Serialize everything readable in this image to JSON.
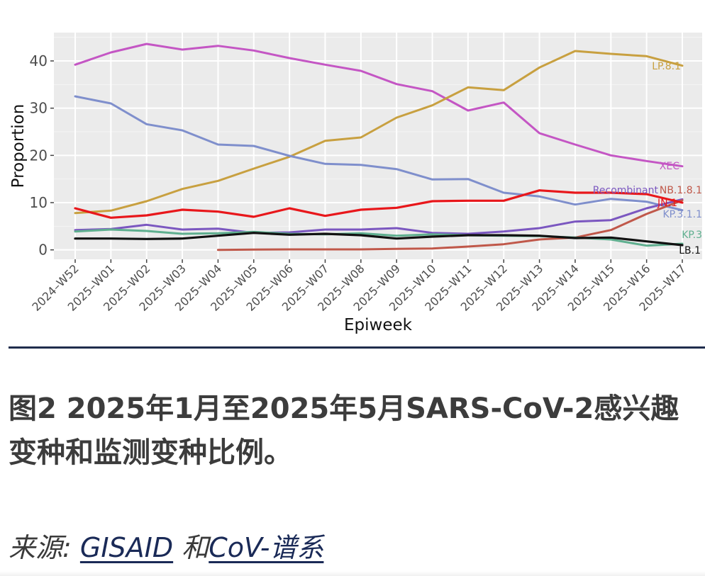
{
  "caption": "图2 2025年1月至2025年5月SARS-CoV-2感兴趣变种和监测变种比例。",
  "source": {
    "prefix": "来源: ",
    "link1": "GISAID",
    "middle": " 和",
    "link2": "CoV-谱系"
  },
  "chart_data": {
    "type": "line",
    "xlabel": "Epiweek",
    "ylabel": "Proportion",
    "ylim": [
      -2,
      46
    ],
    "yticks": [
      0,
      10,
      20,
      30,
      40
    ],
    "grid": true,
    "background": "#ebebeb",
    "categories": [
      "2024–W52",
      "2025–W01",
      "2025–W02",
      "2025–W03",
      "2025–W04",
      "2025–W05",
      "2025–W06",
      "2025–W07",
      "2025–W08",
      "2025–W09",
      "2025–W10",
      "2025–W11",
      "2025–W12",
      "2025–W13",
      "2025–W14",
      "2025–W15",
      "2025–W16",
      "2025–W17"
    ],
    "series": [
      {
        "name": "XEC",
        "color": "#c456c4",
        "values": [
          39.2,
          41.8,
          43.6,
          42.4,
          43.2,
          42.2,
          40.6,
          39.2,
          37.9,
          35.1,
          33.6,
          29.5,
          31.2,
          24.7,
          22.3,
          20.0,
          18.8,
          17.7
        ]
      },
      {
        "name": "LP.8.1",
        "color": "#c8a040",
        "values": [
          7.8,
          8.3,
          10.3,
          12.9,
          14.6,
          17.2,
          19.7,
          23.1,
          23.8,
          28.0,
          30.6,
          34.4,
          33.8,
          38.6,
          42.1,
          41.5,
          41.0,
          39.0
        ]
      },
      {
        "name": "KP.3.1.1",
        "color": "#7f8fcc",
        "values": [
          32.5,
          31.0,
          26.6,
          25.3,
          22.3,
          22.0,
          19.9,
          18.2,
          18.0,
          17.1,
          14.9,
          15.0,
          12.1,
          11.3,
          9.6,
          10.8,
          10.2,
          8.4
        ]
      },
      {
        "name": "Recombinant",
        "color": "#7b57c0",
        "values": [
          4.2,
          4.4,
          5.3,
          4.3,
          4.5,
          3.6,
          3.7,
          4.3,
          4.3,
          4.6,
          3.6,
          3.4,
          3.9,
          4.6,
          6.0,
          6.3,
          8.8,
          10.7
        ]
      },
      {
        "name": "NB.1.8.1",
        "color": "#c0584a",
        "values": [
          null,
          null,
          null,
          null,
          0.0,
          0.05,
          0.1,
          0.1,
          0.1,
          0.2,
          0.3,
          0.7,
          1.2,
          2.2,
          2.6,
          4.2,
          7.6,
          10.5
        ]
      },
      {
        "name": "JN.1",
        "color": "#e8171b",
        "values": [
          8.8,
          6.8,
          7.3,
          8.5,
          8.1,
          7.0,
          8.8,
          7.2,
          8.5,
          8.9,
          10.3,
          10.4,
          10.4,
          12.6,
          12.1,
          12.1,
          11.8,
          10.0
        ]
      },
      {
        "name": "KP.3",
        "color": "#5faf8f",
        "values": [
          3.9,
          4.3,
          4.0,
          3.4,
          3.5,
          3.8,
          3.4,
          3.3,
          3.5,
          3.0,
          3.3,
          3.1,
          3.0,
          2.9,
          2.6,
          2.2,
          0.9,
          1.3
        ]
      },
      {
        "name": "LB.1",
        "color": "#111111",
        "values": [
          2.4,
          2.4,
          2.3,
          2.4,
          3.0,
          3.6,
          3.2,
          3.4,
          3.1,
          2.4,
          2.8,
          3.1,
          3.1,
          3.0,
          2.5,
          2.6,
          1.8,
          1.0
        ]
      }
    ],
    "labels": [
      {
        "series": "LP.8.1",
        "text": "LP.8.1"
      },
      {
        "series": "XEC",
        "text": "XEC"
      },
      {
        "series": "Recombinant",
        "text": "Recombinant"
      },
      {
        "series": "NB.1.8.1",
        "text": "NB.1.8.1"
      },
      {
        "series": "JN.1",
        "text": "JN.1"
      },
      {
        "series": "KP.3.1.1",
        "text": "KP.3.1.1"
      },
      {
        "series": "KP.3",
        "text": "KP.3"
      },
      {
        "series": "LB.1",
        "text": "LB.1"
      }
    ]
  }
}
